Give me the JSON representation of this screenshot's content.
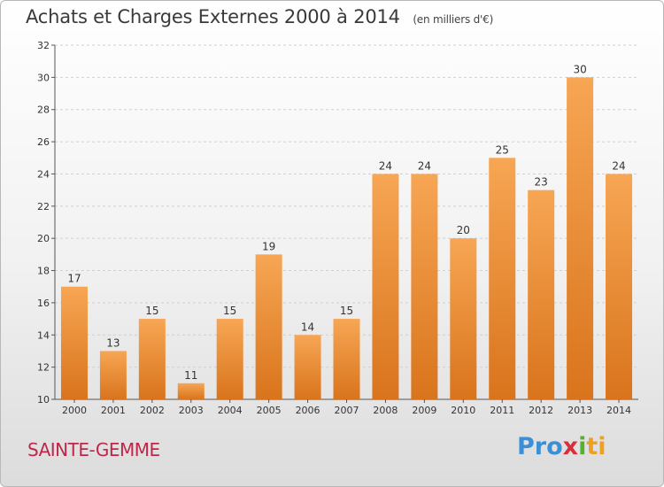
{
  "header": {
    "title": "Achats et Charges Externes 2000 à 2014",
    "unit": "(en milliers d'€)"
  },
  "commune": "SAINTE-GEMME",
  "logo": {
    "p1": "Pro",
    "p2": "x",
    "p3": "i",
    "p4": "ti"
  },
  "chart_data": {
    "type": "bar",
    "title": "Achats et Charges Externes 2000 à 2014",
    "subtitle": "(en milliers d'€)",
    "xlabel": "",
    "ylabel": "",
    "categories": [
      "2000",
      "2001",
      "2002",
      "2003",
      "2004",
      "2005",
      "2006",
      "2007",
      "2008",
      "2009",
      "2010",
      "2011",
      "2012",
      "2013",
      "2014"
    ],
    "values": [
      17,
      13,
      15,
      11,
      15,
      19,
      14,
      15,
      24,
      24,
      20,
      25,
      23,
      30,
      24
    ],
    "ylim": [
      10,
      32
    ],
    "yticks": [
      "10",
      "12",
      "14",
      "16",
      "18",
      "20",
      "22",
      "24",
      "26",
      "28",
      "30",
      "32"
    ],
    "grid": true,
    "colors": {
      "bar_top": "#f7a654",
      "bar_bottom": "#d9741c",
      "grid": "#d0d0d0",
      "axis": "#555555"
    }
  }
}
